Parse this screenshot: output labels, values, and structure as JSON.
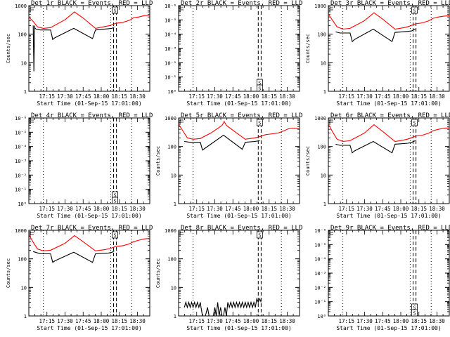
{
  "window": {
    "title": ""
  },
  "chart_data": [
    {
      "type": "line",
      "title": "Det 1r BLACK = Events, RED = LLD",
      "xlabel": "Start Time (01-Sep-15 17:01:00)",
      "ylabel": "Counts/sec",
      "yscale": "log",
      "ylim": [
        1,
        1000
      ],
      "yticks": [
        "1",
        "10",
        "100",
        "1000"
      ],
      "xlim": [
        17.0,
        18.67
      ],
      "xticks": [
        "17:15",
        "17:30",
        "17:45",
        "18:00",
        "18:15",
        "18:30"
      ],
      "dotted_lines_x": [
        17.2,
        18.13,
        18.42
      ],
      "dashed_lines_x": [
        18.17,
        18.21
      ],
      "marker_glyph": "S",
      "marker_x": 18.19,
      "series": [
        {
          "color": "#000000",
          "x": [
            17.06,
            17.07,
            17.08,
            17.08,
            17.1,
            17.16,
            17.3,
            17.33,
            17.36,
            17.62,
            17.88,
            17.92,
            18.1,
            18.15,
            18.18
          ],
          "y": [
            200,
            5,
            200,
            170,
            150,
            140,
            140,
            65,
            75,
            160,
            70,
            140,
            155,
            160,
            180
          ]
        },
        {
          "color": "#ff0000",
          "x": [
            17.0,
            17.06,
            17.12,
            17.2,
            17.3,
            17.5,
            17.63,
            17.76,
            17.92,
            18.05,
            18.12,
            18.2,
            18.3,
            18.38,
            18.45,
            18.52,
            18.6,
            18.67
          ],
          "y": [
            400,
            280,
            180,
            160,
            170,
            320,
            600,
            350,
            160,
            185,
            200,
            240,
            260,
            300,
            380,
            400,
            450,
            450
          ]
        }
      ]
    },
    {
      "type": "line",
      "title": "Det 2r BLACK = Events, RED = LLD",
      "xlabel": "Start Time (01-Sep-15 17:01:00)",
      "ylabel": "",
      "yscale": "log",
      "ylim": [
        1,
        1000000
      ],
      "yticks": [
        "10⁰",
        "10⁻¹",
        "10⁻²",
        "10⁻³",
        "10⁻⁴",
        "10⁻⁵",
        "10⁻⁶"
      ],
      "xlim": [
        17.0,
        18.67
      ],
      "xticks": [
        "17:15",
        "17:30",
        "17:45",
        "18:00",
        "18:15",
        "18:30"
      ],
      "dotted_lines_x": [
        17.2,
        18.42
      ],
      "dashed_lines_x": [
        18.1,
        18.14
      ],
      "marker_glyph": "S",
      "marker_x": 18.12,
      "series": []
    },
    {
      "type": "line",
      "title": "Det 3r BLACK = Events, RED = LLD",
      "xlabel": "Start Time (01-Sep-15 17:01:00)",
      "ylabel": "Counts/sec",
      "yscale": "log",
      "ylim": [
        1,
        1000
      ],
      "yticks": [
        "1",
        "10",
        "100",
        "1000"
      ],
      "xlim": [
        17.0,
        18.67
      ],
      "xticks": [
        "17:15",
        "17:30",
        "17:45",
        "18:00",
        "18:15",
        "18:30"
      ],
      "dotted_lines_x": [
        17.2,
        18.13,
        18.42
      ],
      "dashed_lines_x": [
        18.17,
        18.21
      ],
      "marker_glyph": "S",
      "marker_x": 18.19,
      "series": [
        {
          "color": "#000000",
          "x": [
            17.1,
            17.16,
            17.3,
            17.33,
            17.36,
            17.62,
            17.88,
            17.92,
            18.1,
            18.15,
            18.2
          ],
          "y": [
            120,
            110,
            110,
            55,
            65,
            150,
            55,
            115,
            125,
            130,
            150
          ]
        },
        {
          "color": "#ff0000",
          "x": [
            17.0,
            17.06,
            17.12,
            17.2,
            17.3,
            17.5,
            17.63,
            17.76,
            17.92,
            18.05,
            18.12,
            18.2,
            18.3,
            18.38,
            18.45,
            18.52,
            18.6,
            18.67
          ],
          "y": [
            500,
            300,
            180,
            150,
            160,
            300,
            560,
            320,
            150,
            170,
            190,
            230,
            250,
            290,
            360,
            400,
            430,
            440
          ]
        }
      ]
    },
    {
      "type": "line",
      "title": "Det 4r BLACK = Events, RED = LLD",
      "xlabel": "Start Time (01-Sep-15 17:01:00)",
      "ylabel": "",
      "yscale": "log",
      "ylim": [
        1,
        1000000
      ],
      "yticks": [
        "10⁰",
        "10⁻¹",
        "10⁻²",
        "10⁻³",
        "10⁻⁴",
        "10⁻⁵",
        "10⁻⁶"
      ],
      "xlim": [
        17.0,
        18.67
      ],
      "xticks": [
        "17:15",
        "17:30",
        "17:45",
        "18:00",
        "18:15",
        "18:30"
      ],
      "dotted_lines_x": [
        17.2,
        18.13,
        18.42
      ],
      "dashed_lines_x": [
        18.17,
        18.21
      ],
      "marker_glyph": "S",
      "marker_x": 18.19,
      "series": []
    },
    {
      "type": "line",
      "title": "Det 5r BLACK = Events, RED = LLD",
      "xlabel": "Start Time (01-Sep-15 17:01:00)",
      "ylabel": "Counts/sec",
      "yscale": "log",
      "ylim": [
        1,
        1000
      ],
      "yticks": [
        "1",
        "10",
        "100",
        "1000"
      ],
      "xlim": [
        17.0,
        18.67
      ],
      "xticks": [
        "17:15",
        "17:30",
        "17:45",
        "18:00",
        "18:15",
        "18:30"
      ],
      "dotted_lines_x": [
        17.2,
        18.42
      ],
      "dashed_lines_x": [
        18.1,
        18.14
      ],
      "marker_glyph": "S",
      "marker_x": 18.12,
      "series": [
        {
          "color": "#000000",
          "x": [
            17.08,
            17.16,
            17.3,
            17.33,
            17.36,
            17.62,
            17.88,
            17.92,
            18.05,
            18.12
          ],
          "y": [
            150,
            140,
            140,
            75,
            85,
            250,
            80,
            140,
            150,
            160
          ]
        },
        {
          "color": "#ff0000",
          "x": [
            17.0,
            17.06,
            17.12,
            17.2,
            17.3,
            17.45,
            17.6,
            17.63,
            17.66,
            17.8,
            17.92,
            18.05,
            18.12,
            18.2,
            18.3,
            18.38,
            18.45,
            18.52,
            18.6,
            18.67
          ],
          "y": [
            600,
            350,
            200,
            180,
            190,
            300,
            550,
            750,
            550,
            300,
            180,
            200,
            220,
            260,
            280,
            300,
            350,
            420,
            440,
            420
          ]
        }
      ]
    },
    {
      "type": "line",
      "title": "Det 6r BLACK = Events, RED = LLD",
      "xlabel": "Start Time (01-Sep-15 17:01:00)",
      "ylabel": "Counts/sec",
      "yscale": "log",
      "ylim": [
        1,
        1000
      ],
      "yticks": [
        "1",
        "10",
        "100",
        "1000"
      ],
      "xlim": [
        17.0,
        18.67
      ],
      "xticks": [
        "17:15",
        "17:30",
        "17:45",
        "18:00",
        "18:15",
        "18:30"
      ],
      "dotted_lines_x": [
        17.2,
        18.13,
        18.42
      ],
      "dashed_lines_x": [
        18.17,
        18.21
      ],
      "marker_glyph": "S",
      "marker_x": 18.19,
      "series": [
        {
          "color": "#000000",
          "x": [
            17.1,
            17.16,
            17.3,
            17.33,
            17.36,
            17.62,
            17.88,
            17.92,
            18.1,
            18.15,
            18.2
          ],
          "y": [
            120,
            110,
            110,
            60,
            70,
            150,
            60,
            120,
            130,
            140,
            160
          ]
        },
        {
          "color": "#ff0000",
          "x": [
            17.0,
            17.06,
            17.12,
            17.2,
            17.3,
            17.5,
            17.63,
            17.76,
            17.92,
            18.05,
            18.12,
            18.2,
            18.3,
            18.38,
            18.45,
            18.52,
            18.6,
            18.67
          ],
          "y": [
            600,
            320,
            180,
            150,
            160,
            300,
            580,
            320,
            150,
            170,
            190,
            230,
            250,
            290,
            360,
            400,
            440,
            450
          ]
        }
      ]
    },
    {
      "type": "line",
      "title": "Det 7r BLACK = Events, RED = LLD",
      "xlabel": "Start Time (01-Sep-15 17:01:00)",
      "ylabel": "Counts/sec",
      "yscale": "log",
      "ylim": [
        1,
        1000
      ],
      "yticks": [
        "1",
        "10",
        "100",
        "1000"
      ],
      "xlim": [
        17.0,
        18.67
      ],
      "xticks": [
        "17:15",
        "17:30",
        "17:45",
        "18:00",
        "18:15",
        "18:30"
      ],
      "dotted_lines_x": [
        17.2,
        18.13,
        18.42
      ],
      "dashed_lines_x": [
        18.17,
        18.21
      ],
      "marker_glyph": "S",
      "marker_x": 18.19,
      "series": [
        {
          "color": "#000000",
          "x": [
            17.06,
            17.16,
            17.3,
            17.33,
            17.36,
            17.62,
            17.88,
            17.92,
            18.1,
            18.15,
            18.18
          ],
          "y": [
            180,
            150,
            150,
            75,
            85,
            170,
            75,
            150,
            160,
            170,
            190
          ]
        },
        {
          "color": "#ff0000",
          "x": [
            17.0,
            17.06,
            17.12,
            17.2,
            17.3,
            17.5,
            17.63,
            17.76,
            17.92,
            18.05,
            18.12,
            18.2,
            18.3,
            18.38,
            18.45,
            18.52,
            18.6,
            18.67
          ],
          "y": [
            700,
            380,
            220,
            190,
            200,
            350,
            650,
            380,
            190,
            210,
            230,
            270,
            290,
            330,
            400,
            450,
            500,
            520
          ]
        }
      ]
    },
    {
      "type": "line",
      "title": "Det 8r BLACK = Events, RED = LLD",
      "xlabel": "Start Time (01-Sep-15 17:01:00)",
      "ylabel": "Counts/sec",
      "yscale": "log",
      "ylim": [
        1,
        1000
      ],
      "yticks": [
        "1",
        "10",
        "100",
        "1000"
      ],
      "xlim": [
        17.0,
        18.67
      ],
      "xticks": [
        "17:15",
        "17:30",
        "17:45",
        "18:00",
        "18:15",
        "18:30"
      ],
      "dotted_lines_x": [
        17.2,
        18.42
      ],
      "dashed_lines_x": [
        18.1,
        18.14
      ],
      "marker_glyph": "S",
      "marker_x": 18.12,
      "series": [
        {
          "color": "#000000",
          "x": [
            17.08,
            17.1,
            17.12,
            17.14,
            17.16,
            17.18,
            17.2,
            17.22,
            17.24,
            17.26,
            17.28,
            17.3,
            17.31,
            17.33,
            17.35,
            17.37,
            17.4,
            17.42,
            17.45,
            17.48,
            17.5,
            17.52,
            17.54,
            17.56,
            17.58,
            17.6,
            17.62,
            17.64,
            17.66,
            17.68,
            17.7,
            17.72,
            17.74,
            17.76,
            17.78,
            17.8,
            17.82,
            17.84,
            17.86,
            17.88,
            17.9,
            17.92,
            17.94,
            17.96,
            17.98,
            18.0,
            18.02,
            18.04,
            18.06,
            18.08,
            18.1,
            18.12,
            18.14
          ],
          "y": [
            2,
            3,
            2,
            3,
            2,
            3,
            2,
            3,
            2,
            3,
            2,
            3,
            2,
            1,
            1,
            1,
            2,
            1,
            1,
            1,
            2,
            1,
            3,
            1,
            2,
            1,
            1,
            2,
            1,
            3,
            2,
            3,
            2,
            3,
            2,
            3,
            2,
            3,
            2,
            3,
            2,
            3,
            2,
            3,
            2,
            3,
            2,
            3,
            2,
            4,
            3,
            4,
            3
          ]
        }
      ]
    },
    {
      "type": "line",
      "title": "Det 9r BLACK = Events, RED = LLD",
      "xlabel": "Start Time (01-Sep-15 17:01:00)",
      "ylabel": "",
      "yscale": "log",
      "ylim": [
        1,
        1000000
      ],
      "yticks": [
        "10⁰",
        "10⁻¹",
        "10⁻²",
        "10⁻³",
        "10⁻⁴",
        "10⁻⁵",
        "10⁻⁶"
      ],
      "xlim": [
        17.0,
        18.67
      ],
      "xticks": [
        "17:15",
        "17:30",
        "17:45",
        "18:00",
        "18:15",
        "18:30"
      ],
      "dotted_lines_x": [
        17.2,
        18.13,
        18.42
      ],
      "dashed_lines_x": [
        18.17,
        18.21
      ],
      "marker_glyph": "S",
      "marker_x": 18.19,
      "series": []
    }
  ]
}
